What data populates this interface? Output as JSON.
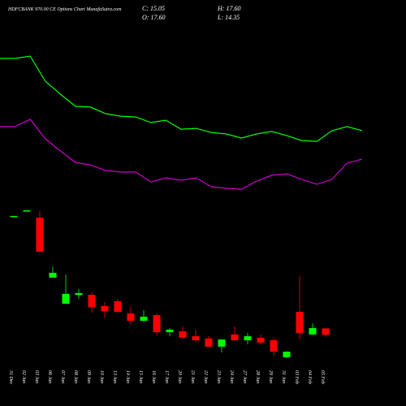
{
  "chart_data": {
    "type": "candlestick",
    "title": "HDFCBANK 970.00 CE Options Chart MunafaSutra.com",
    "stats": [
      "C: 15.05",
      "H: 17.60",
      "O: 17.60",
      "L: 14.35"
    ],
    "categories": [
      "31 Dec",
      "02 Jan",
      "03 Jan",
      "06 Jan",
      "07 Jan",
      "08 Jan",
      "09 Jan",
      "10 Jan",
      "13 Jan",
      "14 Jan",
      "15 Jan",
      "16 Jan",
      "17 Jan",
      "20 Jan",
      "21 Jan",
      "22 Jan",
      "23 Jan",
      "24 Jan",
      "27 Jan",
      "28 Jan",
      "29 Jan",
      "31 Jan",
      "03 Feb",
      "04 Feb",
      "05 Feb"
    ],
    "open": [
      61.9,
      64.1,
      61.2,
      37.6,
      27.3,
      30.8,
      30.8,
      26.4,
      28.3,
      23.5,
      20.6,
      22.8,
      16.1,
      16.4,
      14.5,
      13.6,
      10.4,
      15.2,
      12.9,
      13.9,
      12.9,
      6.2,
      24.1,
      15.2,
      17.6
    ],
    "high": [
      61.9,
      64.1,
      63.8,
      42.0,
      38.8,
      33.1,
      31.8,
      28.0,
      29.2,
      26.0,
      24.8,
      23.5,
      17.7,
      18.4,
      16.9,
      14.5,
      11.8,
      18.4,
      15.8,
      15.2,
      13.9,
      8.6,
      38.2,
      19.6,
      17.6
    ],
    "low": [
      61.9,
      64.1,
      47.8,
      37.6,
      27.3,
      29.2,
      23.8,
      21.6,
      23.5,
      19.0,
      20.2,
      14.8,
      14.5,
      13.2,
      12.0,
      10.1,
      8.1,
      12.6,
      11.3,
      11.3,
      6.8,
      5.9,
      13.2,
      15.2,
      14.35
    ],
    "close": [
      61.9,
      64.1,
      47.8,
      39.5,
      31.2,
      31.5,
      26.0,
      24.4,
      24.1,
      20.6,
      22.2,
      16.1,
      17.1,
      13.9,
      12.9,
      10.4,
      13.2,
      12.9,
      14.5,
      12.0,
      8.4,
      8.4,
      15.8,
      17.7,
      15.05
    ],
    "up_color": "#00ff00",
    "down_color": "#ff0000",
    "series": [
      {
        "color": "#00ff00",
        "values": [
          124.0,
          124.0,
          124.9,
          115.0,
          109.9,
          105.1,
          104.8,
          102.2,
          101.2,
          100.9,
          98.7,
          99.6,
          96.1,
          96.4,
          94.8,
          94.2,
          92.6,
          94.2,
          95.2,
          93.6,
          91.6,
          91.3,
          95.5,
          97.1,
          95.5
        ]
      },
      {
        "color": "#cc00cc",
        "values": [
          97.1,
          97.1,
          100.0,
          92.3,
          87.5,
          83.0,
          82.0,
          79.8,
          79.2,
          79.2,
          75.3,
          76.9,
          76.0,
          76.9,
          73.4,
          72.8,
          72.4,
          75.6,
          77.9,
          78.5,
          76.3,
          74.4,
          76.3,
          82.7,
          84.3
        ]
      }
    ],
    "ylim": [
      -13,
      147
    ],
    "background": "#000000"
  }
}
